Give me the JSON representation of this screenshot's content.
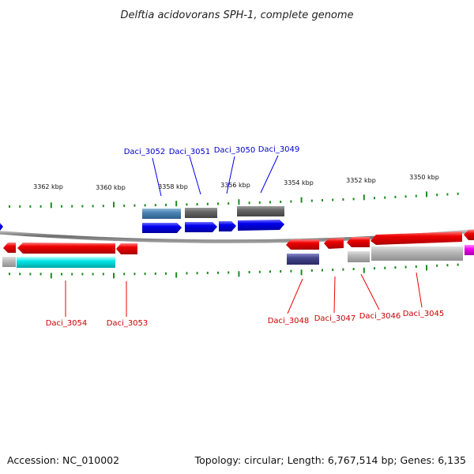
{
  "title": "Delftia acidovorans SPH-1, complete genome",
  "footer": {
    "accession": "Accession: NC_010002",
    "topology": "Topology: circular; Length: 6,767,514 bp; Genes: 6,135"
  },
  "colors": {
    "backbone": "#7a7a7a",
    "tick": "#1e8c1e",
    "forward_gene": "#0000ee",
    "reverse_gene": "#ee0000",
    "forward_label": "#0000cc",
    "reverse_label": "#cc0000"
  },
  "coordinate_labels": [
    "3362 kbp",
    "3360 kbp",
    "3358 kbp",
    "3356 kbp",
    "3354 kbp",
    "3352 kbp",
    "3350 kbp"
  ],
  "forward_genes": [
    "Daci_3052",
    "Daci_3051",
    "Daci_3050",
    "Daci_3049"
  ],
  "reverse_genes": [
    "Daci_3054",
    "Daci_3053",
    "Daci_3048",
    "Daci_3047",
    "Daci_3046",
    "Daci_3045"
  ]
}
